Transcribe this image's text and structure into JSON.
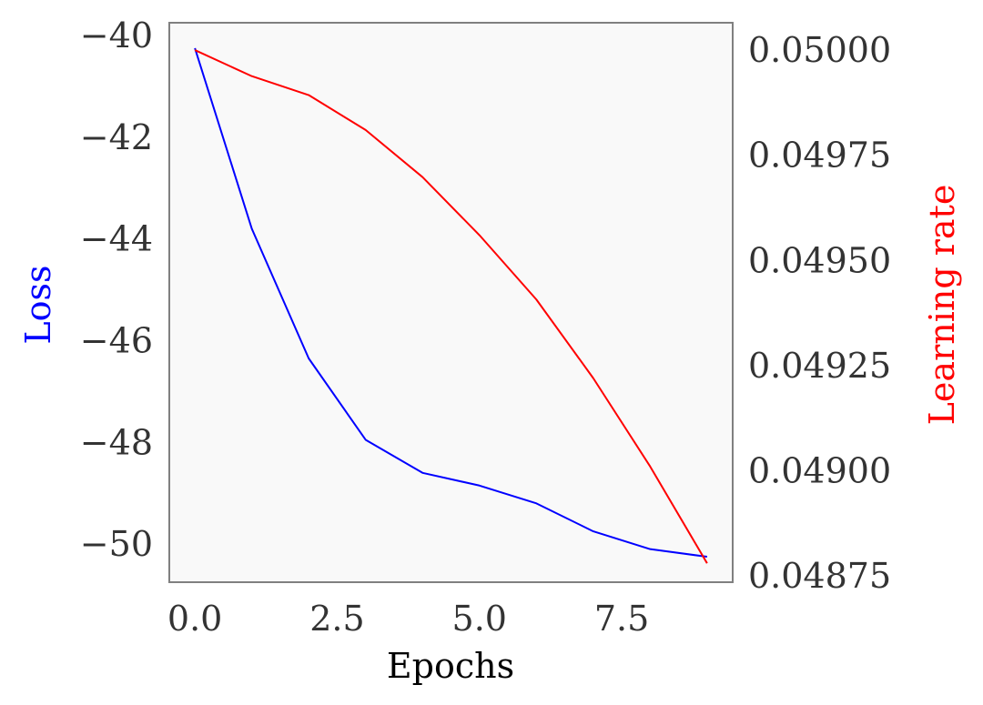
{
  "chart_data": {
    "type": "line",
    "xlabel": "Epochs",
    "ylabel_left": "Loss",
    "ylabel_right": "Learning rate",
    "xlim": [
      -0.45,
      9.45
    ],
    "ylim_left": [
      -50.75,
      -39.75
    ],
    "ylim_right": [
      0.048735,
      0.050065
    ],
    "x_ticks": [
      0.0,
      2.5,
      5.0,
      7.5
    ],
    "x_tick_labels": [
      "0.0",
      "2.5",
      "5.0",
      "7.5"
    ],
    "y_left_ticks": [
      -40,
      -42,
      -44,
      -46,
      -48,
      -50
    ],
    "y_left_tick_labels": [
      "−40",
      "−42",
      "−44",
      "−46",
      "−48",
      "−50"
    ],
    "y_right_ticks": [
      0.05,
      0.04975,
      0.0495,
      0.04925,
      0.049,
      0.04875
    ],
    "y_right_tick_labels": [
      "0.05000",
      "0.04975",
      "0.04950",
      "0.04925",
      "0.04900",
      "0.04875"
    ],
    "grid": false,
    "series": [
      {
        "name": "Loss",
        "axis": "left",
        "color": "#0000ff",
        "x": [
          0,
          1,
          2,
          3,
          4,
          5,
          6,
          7,
          8,
          9
        ],
        "values": [
          -40.25,
          -43.8,
          -46.35,
          -47.95,
          -48.6,
          -48.85,
          -49.2,
          -49.75,
          -50.1,
          -50.25
        ]
      },
      {
        "name": "Learning rate",
        "axis": "right",
        "color": "#ff0000",
        "x": [
          0,
          1,
          2,
          3,
          4,
          5,
          6,
          7,
          8,
          9
        ],
        "values": [
          0.05,
          0.049938,
          0.049893,
          0.04981,
          0.049698,
          0.04956,
          0.049407,
          0.04922,
          0.04901,
          0.04878
        ]
      }
    ]
  },
  "colors": {
    "plot_background": "#f9f9f9",
    "frame": "#808080",
    "left_axis_title": "#0000ff",
    "right_axis_title": "#ff0000",
    "x_axis_title": "#000000"
  }
}
